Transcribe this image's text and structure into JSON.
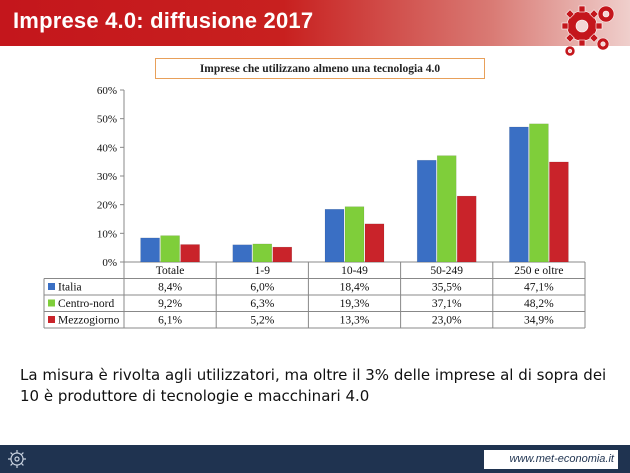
{
  "header": {
    "title": "Imprese 4.0: diffusione 2017"
  },
  "chart_data": {
    "type": "bar",
    "title": "Imprese che utilizzano almeno una tecnologia 4.0",
    "categories": [
      "Totale",
      "1-9",
      "10-49",
      "50-249",
      "250 e oltre"
    ],
    "series": [
      {
        "name": "Italia",
        "color": "#3a6fc4",
        "values": [
          8.4,
          6.0,
          18.4,
          35.5,
          47.1
        ],
        "labels": [
          "8,4%",
          "6,0%",
          "18,4%",
          "35,5%",
          "47,1%"
        ]
      },
      {
        "name": "Centro-nord",
        "color": "#7fce3a",
        "values": [
          9.2,
          6.3,
          19.3,
          37.1,
          48.2
        ],
        "labels": [
          "9,2%",
          "6,3%",
          "19,3%",
          "37,1%",
          "48,2%"
        ]
      },
      {
        "name": "Mezzogiorno",
        "color": "#c9232a",
        "values": [
          6.1,
          5.2,
          13.3,
          23.0,
          34.9
        ],
        "labels": [
          "6,1%",
          "5,2%",
          "13,3%",
          "23,0%",
          "34,9%"
        ]
      }
    ],
    "ylim": [
      0,
      60
    ],
    "yticks": [
      0,
      10,
      20,
      30,
      40,
      50,
      60
    ],
    "ytick_labels": [
      "0%",
      "10%",
      "20%",
      "30%",
      "40%",
      "50%",
      "60%"
    ],
    "grid": false,
    "legend": "data-table"
  },
  "body_text": "La misura è rivolta agli utilizzatori, ma oltre il 3% delle imprese al di sopra dei 10 è produttore di tecnologie e macchinari 4.0",
  "footer": {
    "url": "www.met-economia.it"
  }
}
